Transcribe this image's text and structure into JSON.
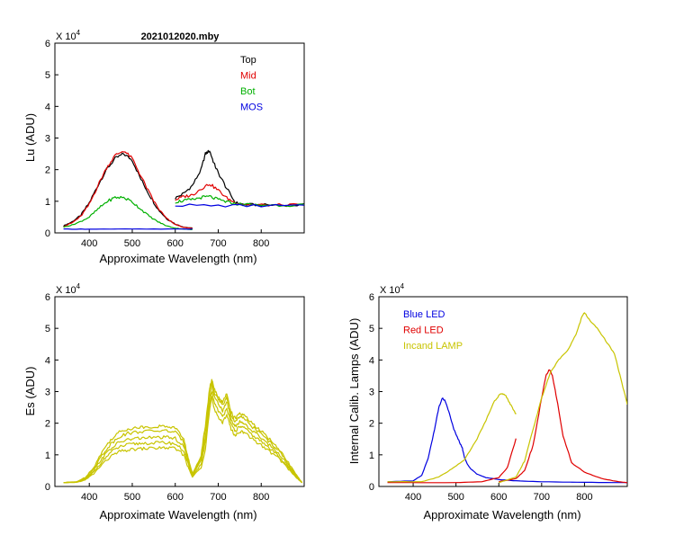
{
  "chart_data": [
    {
      "id": "lu",
      "type": "line",
      "title": "2021012020.mby",
      "xlabel": "Approximate Wavelength (nm)",
      "ylabel": "Lu (ADU)",
      "exponent_label": "X 10",
      "exponent_power": "4",
      "xlim": [
        320,
        900
      ],
      "ylim": [
        0,
        6
      ],
      "xticks": [
        "400",
        "500",
        "600",
        "700",
        "800"
      ],
      "xtick_values": [
        400,
        500,
        600,
        700,
        800
      ],
      "yticks": [
        "0",
        "1",
        "2",
        "3",
        "4",
        "5",
        "6"
      ],
      "ytick_values": [
        0,
        1,
        2,
        3,
        4,
        5,
        6
      ],
      "legend": [
        {
          "name": "Top",
          "color": "#000000"
        },
        {
          "name": "Mid",
          "color": "#e00000"
        },
        {
          "name": "Bot",
          "color": "#00b000"
        },
        {
          "name": "MOS",
          "color": "#0000e0"
        }
      ],
      "series": [
        {
          "name": "Top",
          "color": "#000000",
          "x": [
            340,
            360,
            380,
            400,
            420,
            440,
            460,
            480,
            500,
            520,
            540,
            560,
            580,
            600,
            620,
            640
          ],
          "y": [
            0.22,
            0.35,
            0.55,
            0.95,
            1.5,
            2.0,
            2.35,
            2.5,
            2.3,
            1.7,
            1.2,
            0.75,
            0.45,
            0.28,
            0.18,
            0.15
          ]
        },
        {
          "name": "Top",
          "color": "#000000",
          "x": [
            600,
            620,
            640,
            660,
            670,
            680,
            690,
            700,
            720,
            740,
            760,
            800,
            850,
            900
          ],
          "y": [
            1.1,
            1.25,
            1.5,
            2.0,
            2.5,
            2.6,
            2.2,
            1.9,
            1.4,
            0.95,
            0.9,
            0.88,
            0.88,
            0.88
          ]
        },
        {
          "name": "Mid",
          "color": "#e00000",
          "x": [
            340,
            360,
            380,
            400,
            420,
            440,
            460,
            480,
            500,
            520,
            540,
            560,
            580,
            600,
            620,
            640
          ],
          "y": [
            0.2,
            0.32,
            0.52,
            0.9,
            1.5,
            2.05,
            2.45,
            2.6,
            2.35,
            1.8,
            1.25,
            0.78,
            0.45,
            0.27,
            0.17,
            0.14
          ]
        },
        {
          "name": "Mid",
          "color": "#e00000",
          "x": [
            600,
            620,
            640,
            660,
            680,
            700,
            720,
            740,
            760,
            800,
            850,
            900
          ],
          "y": [
            1.05,
            1.15,
            1.2,
            1.4,
            1.55,
            1.35,
            1.1,
            0.95,
            0.9,
            0.88,
            0.88,
            0.88
          ]
        },
        {
          "name": "Bot",
          "color": "#00b000",
          "x": [
            340,
            360,
            380,
            400,
            420,
            440,
            460,
            480,
            500,
            520,
            540,
            560,
            580,
            600,
            620,
            640
          ],
          "y": [
            0.18,
            0.25,
            0.36,
            0.5,
            0.75,
            0.98,
            1.12,
            1.12,
            0.98,
            0.75,
            0.52,
            0.35,
            0.22,
            0.15,
            0.12,
            0.1
          ]
        },
        {
          "name": "Bot",
          "color": "#00b000",
          "x": [
            600,
            620,
            640,
            660,
            680,
            700,
            720,
            740,
            760,
            800,
            850,
            900
          ],
          "y": [
            0.98,
            1.02,
            1.05,
            1.12,
            1.15,
            1.05,
            0.98,
            0.92,
            0.9,
            0.88,
            0.88,
            0.88
          ]
        },
        {
          "name": "MOS",
          "color": "#0000e0",
          "x": [
            340,
            400,
            500,
            600,
            640
          ],
          "y": [
            0.12,
            0.12,
            0.12,
            0.12,
            0.12
          ]
        },
        {
          "name": "MOS",
          "color": "#0000e0",
          "x": [
            600,
            700,
            800,
            900
          ],
          "y": [
            0.88,
            0.86,
            0.86,
            0.86
          ]
        }
      ]
    },
    {
      "id": "es",
      "type": "line",
      "title": "",
      "xlabel": "Approximate Wavelength (nm)",
      "ylabel": "Es  (ADU)",
      "exponent_label": "X 10",
      "exponent_power": "4",
      "xlim": [
        320,
        900
      ],
      "ylim": [
        0,
        6
      ],
      "xticks": [
        "400",
        "500",
        "600",
        "700",
        "800"
      ],
      "xtick_values": [
        400,
        500,
        600,
        700,
        800
      ],
      "yticks": [
        "0",
        "1",
        "2",
        "3",
        "4",
        "5",
        "6"
      ],
      "ytick_values": [
        0,
        1,
        2,
        3,
        4,
        5,
        6
      ],
      "legend": [],
      "series": [
        {
          "name": "Es",
          "color": "#c8c400",
          "x": [
            340,
            370,
            390,
            410,
            430,
            450,
            470,
            490,
            510,
            530,
            560,
            580,
            600,
            620,
            630,
            640,
            660,
            670,
            680,
            685,
            690,
            700,
            710,
            720,
            730,
            740,
            750,
            760,
            780,
            800,
            820,
            840,
            860,
            880,
            895
          ],
          "y": [
            0.12,
            0.13,
            0.2,
            0.4,
            0.7,
            0.95,
            1.1,
            1.15,
            1.18,
            1.2,
            1.22,
            1.22,
            1.2,
            1.0,
            0.6,
            0.3,
            0.6,
            1.2,
            2.4,
            2.8,
            2.5,
            2.2,
            2.0,
            2.3,
            1.8,
            1.6,
            1.75,
            1.7,
            1.5,
            1.3,
            1.1,
            0.9,
            0.6,
            0.3,
            0.12
          ]
        },
        {
          "name": "Es",
          "color": "#c8c400",
          "x": [
            340,
            370,
            390,
            410,
            430,
            450,
            470,
            490,
            510,
            530,
            560,
            580,
            600,
            620,
            630,
            640,
            660,
            670,
            680,
            685,
            690,
            700,
            710,
            720,
            730,
            740,
            750,
            760,
            780,
            800,
            820,
            840,
            860,
            880,
            895
          ],
          "y": [
            0.12,
            0.13,
            0.22,
            0.45,
            0.8,
            1.08,
            1.25,
            1.32,
            1.35,
            1.37,
            1.38,
            1.38,
            1.35,
            1.12,
            0.7,
            0.33,
            0.7,
            1.4,
            2.6,
            3.0,
            2.7,
            2.4,
            2.2,
            2.5,
            1.95,
            1.75,
            1.9,
            1.85,
            1.62,
            1.42,
            1.2,
            0.98,
            0.66,
            0.32,
            0.12
          ]
        },
        {
          "name": "Es",
          "color": "#c8c400",
          "x": [
            340,
            370,
            390,
            410,
            430,
            450,
            470,
            490,
            510,
            530,
            560,
            580,
            600,
            620,
            630,
            640,
            660,
            670,
            680,
            685,
            690,
            700,
            710,
            720,
            730,
            740,
            750,
            760,
            780,
            800,
            820,
            840,
            860,
            880,
            895
          ],
          "y": [
            0.12,
            0.14,
            0.24,
            0.5,
            0.9,
            1.2,
            1.4,
            1.48,
            1.52,
            1.54,
            1.55,
            1.55,
            1.52,
            1.25,
            0.78,
            0.36,
            0.8,
            1.6,
            2.8,
            3.2,
            2.9,
            2.6,
            2.4,
            2.7,
            2.1,
            1.9,
            2.05,
            2.0,
            1.75,
            1.55,
            1.3,
            1.06,
            0.72,
            0.35,
            0.12
          ]
        },
        {
          "name": "Es",
          "color": "#c8c400",
          "x": [
            340,
            370,
            390,
            410,
            430,
            450,
            470,
            490,
            510,
            530,
            560,
            580,
            600,
            620,
            630,
            640,
            660,
            670,
            680,
            685,
            690,
            700,
            710,
            720,
            730,
            740,
            750,
            760,
            780,
            800,
            820,
            840,
            860,
            880,
            895
          ],
          "y": [
            0.12,
            0.14,
            0.26,
            0.55,
            1.0,
            1.35,
            1.58,
            1.68,
            1.72,
            1.74,
            1.76,
            1.76,
            1.72,
            1.4,
            0.85,
            0.38,
            0.9,
            1.8,
            3.0,
            3.35,
            3.0,
            2.75,
            2.55,
            2.85,
            2.25,
            2.05,
            2.2,
            2.15,
            1.88,
            1.66,
            1.4,
            1.14,
            0.78,
            0.38,
            0.12
          ]
        },
        {
          "name": "Es",
          "color": "#c8c400",
          "x": [
            340,
            370,
            390,
            410,
            430,
            450,
            470,
            490,
            510,
            530,
            560,
            580,
            600,
            620,
            630,
            640,
            660,
            670,
            680,
            685,
            690,
            700,
            710,
            720,
            730,
            740,
            750,
            760,
            780,
            800,
            820,
            840,
            860,
            880,
            895
          ],
          "y": [
            0.12,
            0.15,
            0.28,
            0.6,
            1.1,
            1.48,
            1.72,
            1.82,
            1.86,
            1.88,
            1.9,
            1.9,
            1.86,
            1.5,
            0.9,
            0.4,
            1.0,
            1.95,
            3.1,
            3.38,
            3.1,
            2.85,
            2.65,
            2.95,
            2.35,
            2.15,
            2.3,
            2.25,
            1.98,
            1.75,
            1.48,
            1.2,
            0.82,
            0.4,
            0.12
          ]
        }
      ]
    },
    {
      "id": "lamps",
      "type": "line",
      "title": "",
      "xlabel": "Approximate Wavelength (nm)",
      "ylabel": "Internal Calib. Lamps (ADU)",
      "exponent_label": "X 10",
      "exponent_power": "4",
      "xlim": [
        320,
        900
      ],
      "ylim": [
        0,
        6
      ],
      "xticks": [
        "400",
        "500",
        "600",
        "700",
        "800"
      ],
      "xtick_values": [
        400,
        500,
        600,
        700,
        800
      ],
      "yticks": [
        "0",
        "1",
        "2",
        "3",
        "4",
        "5",
        "6"
      ],
      "ytick_values": [
        0,
        1,
        2,
        3,
        4,
        5,
        6
      ],
      "legend": [
        {
          "name": "Blue LED",
          "color": "#0000e0"
        },
        {
          "name": "Red LED",
          "color": "#e00000"
        },
        {
          "name": "Incand LAMP",
          "color": "#c8c400"
        }
      ],
      "series": [
        {
          "name": "Blue LED",
          "color": "#0000e0",
          "x": [
            340,
            400,
            420,
            435,
            450,
            460,
            468,
            475,
            485,
            495,
            505,
            515,
            520,
            525,
            535,
            550,
            570,
            600,
            640,
            700,
            800,
            900
          ],
          "y": [
            0.15,
            0.18,
            0.35,
            0.9,
            1.8,
            2.5,
            2.8,
            2.7,
            2.3,
            1.8,
            1.5,
            1.2,
            0.9,
            0.75,
            0.55,
            0.38,
            0.28,
            0.22,
            0.18,
            0.15,
            0.13,
            0.12
          ]
        },
        {
          "name": "Red LED",
          "color": "#e00000",
          "x": [
            340,
            500,
            560,
            600,
            620,
            640
          ],
          "y": [
            0.12,
            0.12,
            0.15,
            0.28,
            0.6,
            1.5
          ]
        },
        {
          "name": "Red LED",
          "color": "#e00000",
          "x": [
            600,
            640,
            660,
            680,
            700,
            710,
            718,
            725,
            735,
            750,
            770,
            800,
            840,
            880,
            900
          ],
          "y": [
            0.15,
            0.25,
            0.5,
            1.3,
            2.8,
            3.5,
            3.7,
            3.5,
            2.8,
            1.6,
            0.75,
            0.45,
            0.25,
            0.15,
            0.12
          ]
        },
        {
          "name": "Incand LAMP",
          "color": "#c8c400",
          "x": [
            340,
            420,
            460,
            490,
            520,
            545,
            570,
            590,
            605,
            615,
            625,
            635,
            640
          ],
          "y": [
            0.15,
            0.15,
            0.3,
            0.55,
            0.85,
            1.4,
            2.1,
            2.7,
            2.95,
            2.9,
            2.65,
            2.4,
            2.3
          ]
        },
        {
          "name": "Incand LAMP",
          "color": "#c8c400",
          "x": [
            600,
            640,
            660,
            680,
            700,
            720,
            740,
            760,
            780,
            795,
            800,
            810,
            830,
            850,
            870,
            885,
            900
          ],
          "y": [
            0.12,
            0.3,
            0.8,
            1.8,
            2.8,
            3.6,
            4.0,
            4.3,
            4.8,
            5.4,
            5.5,
            5.3,
            5.0,
            4.6,
            4.2,
            3.4,
            2.6
          ]
        }
      ]
    }
  ]
}
